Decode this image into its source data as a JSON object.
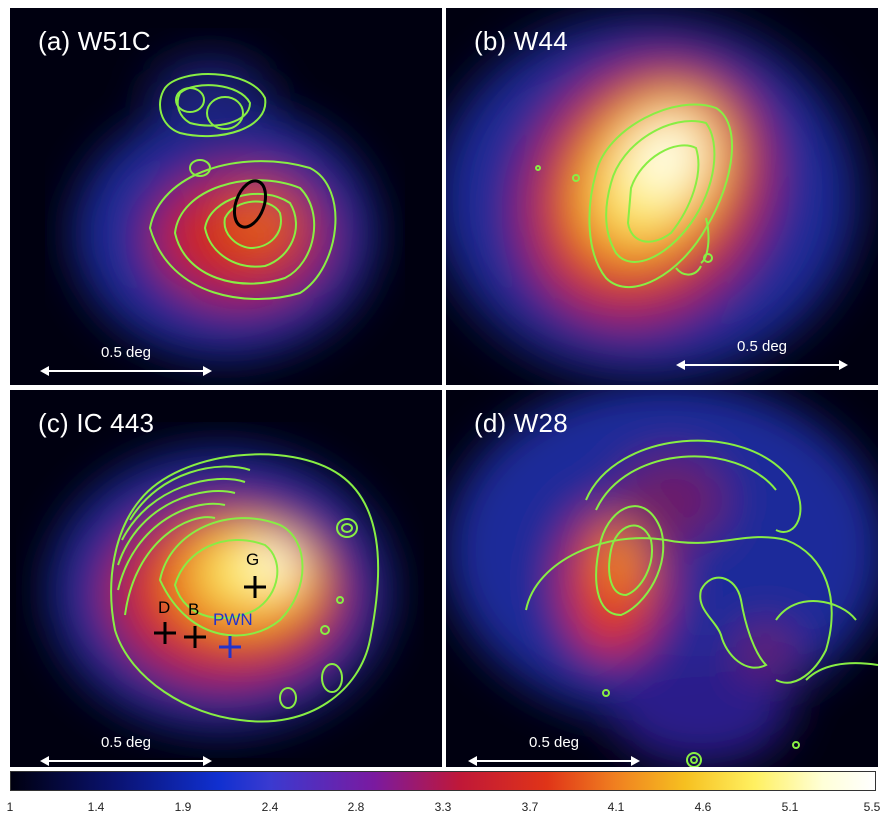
{
  "panels": {
    "a": {
      "title": "(a) W51C",
      "scale_label": "0.5 deg"
    },
    "b": {
      "title": "(b) W44",
      "scale_label": "0.5 deg"
    },
    "c": {
      "title": "(c) IC 443",
      "scale_label": "0.5 deg",
      "markers": {
        "g": "G",
        "d": "D",
        "b": "B",
        "pwn": "PWN"
      }
    },
    "d": {
      "title": "(d) W28",
      "scale_label": "0.5 deg"
    }
  },
  "colorbar": {
    "ticks": [
      "1",
      "1.4",
      "1.9",
      "2.4",
      "2.8",
      "3.3",
      "3.7",
      "4.1",
      "4.6",
      "5.1",
      "5.5"
    ]
  },
  "colors": {
    "contour": "#88ee44",
    "marker_black": "#000000",
    "marker_blue": "#2233cc",
    "background": "#000010"
  }
}
